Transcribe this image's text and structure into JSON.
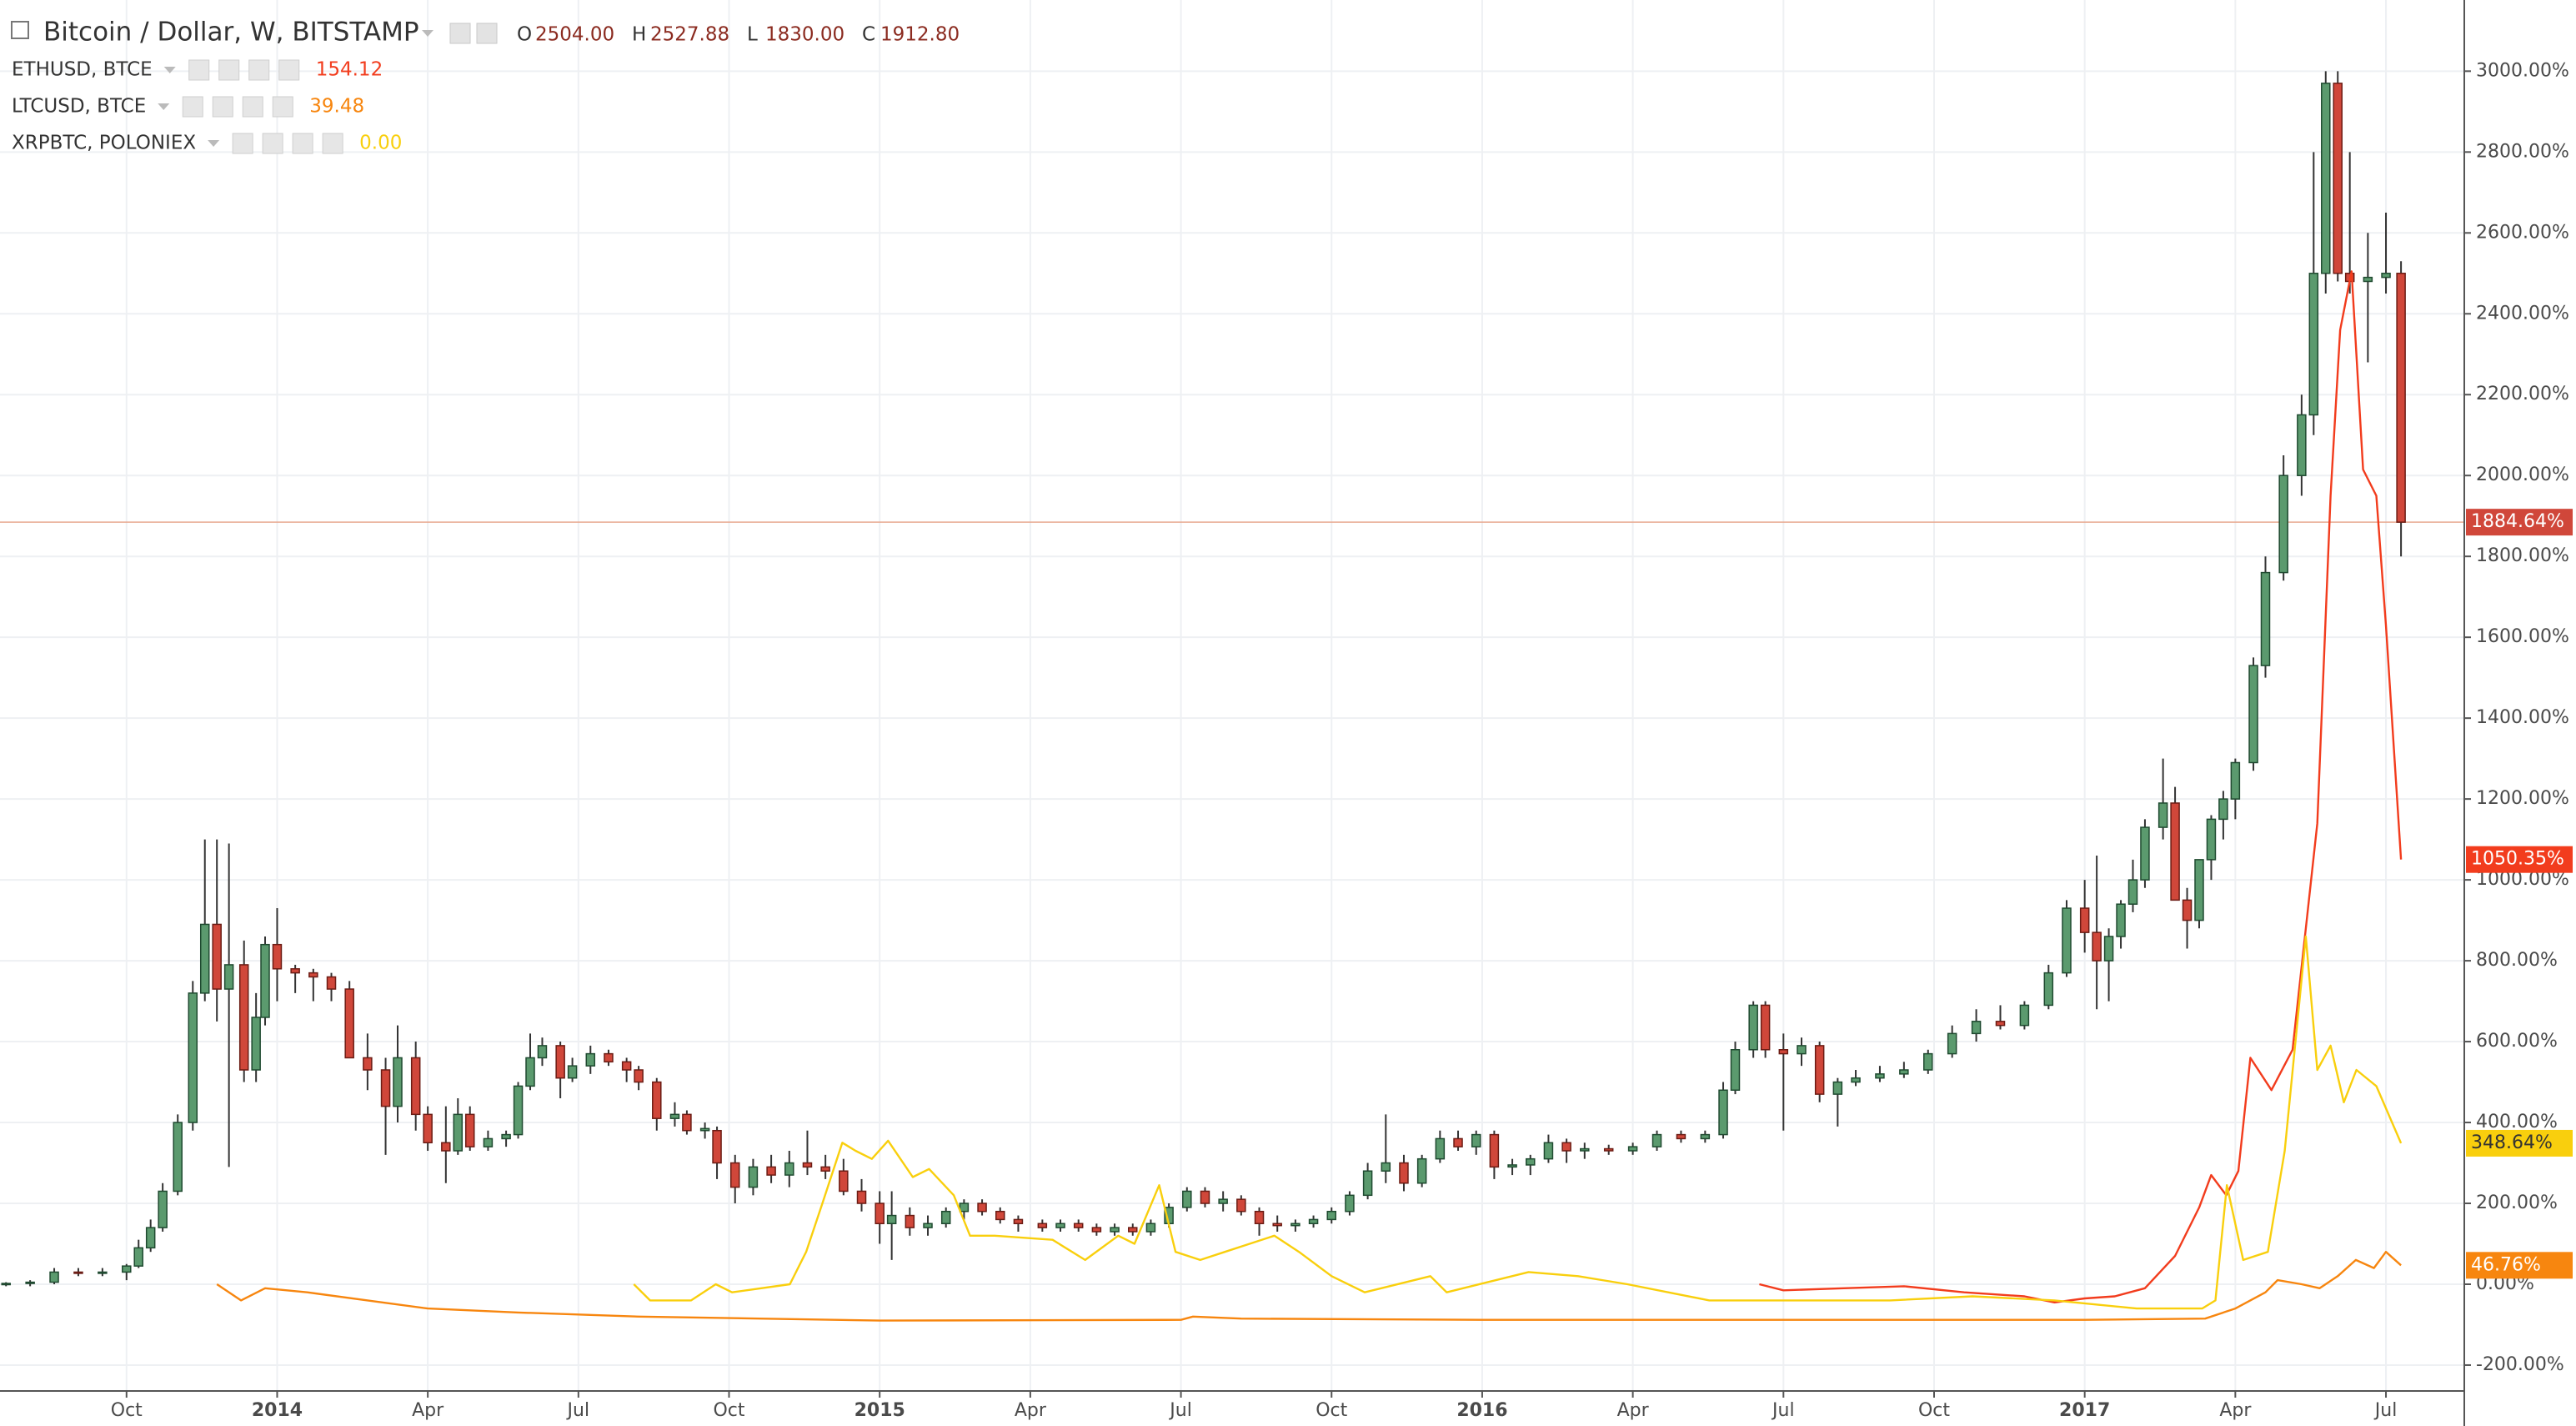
{
  "chart_data": {
    "type": "candlestick",
    "title": "Bitcoin / Dollar, W, BITSTAMP",
    "ohlc": [
      {
        "label": "O",
        "value": "2504.00"
      },
      {
        "label": "H",
        "value": "2527.88"
      },
      {
        "label": "L",
        "value": "1830.00"
      },
      {
        "label": "C",
        "value": "1912.80"
      }
    ],
    "xlim": [
      2013.54,
      2017.63
    ],
    "xticks": [
      {
        "value": 2013.75,
        "label": "Oct"
      },
      2014,
      {
        "value": 2014.25,
        "label": "Apr"
      },
      {
        "value": 2014.5,
        "label": "Jul"
      },
      {
        "value": 2014.75,
        "label": "Oct"
      },
      2015,
      {
        "value": 2015.25,
        "label": "Apr"
      },
      {
        "value": 2015.5,
        "label": "Jul"
      },
      {
        "value": 2015.75,
        "label": "Oct"
      },
      2016,
      {
        "value": 2016.25,
        "label": "Apr"
      },
      {
        "value": 2016.5,
        "label": "Jul"
      },
      {
        "value": 2016.75,
        "label": "Oct"
      },
      2017,
      {
        "value": 2017.25,
        "label": "Apr"
      },
      {
        "value": 2017.5,
        "label": "Jul"
      }
    ],
    "ylim": [
      -264,
      3176
    ],
    "yticks": [
      {
        "value": -200,
        "label": "-200.00%"
      },
      {
        "value": 0,
        "label": "0.00%"
      },
      {
        "value": 200,
        "label": "200.00%"
      },
      {
        "value": 400,
        "label": "400.00%"
      },
      {
        "value": 600,
        "label": "600.00%"
      },
      {
        "value": 800,
        "label": "800.00%"
      },
      {
        "value": 1000,
        "label": "1000.00%"
      },
      {
        "value": 1200,
        "label": "1200.00%"
      },
      {
        "value": 1400,
        "label": "1400.00%"
      },
      {
        "value": 1600,
        "label": "1600.00%"
      },
      {
        "value": 1800,
        "label": "1800.00%"
      },
      {
        "value": 2000,
        "label": "2000.00%"
      },
      {
        "value": 2200,
        "label": "2200.00%"
      },
      {
        "value": 2400,
        "label": "2400.00%"
      },
      {
        "value": 2600,
        "label": "2600.00%"
      },
      {
        "value": 2800,
        "label": "2800.00%"
      },
      {
        "value": 3000,
        "label": "3000.00%"
      }
    ],
    "grid": true,
    "up_color": "#5b9a6e",
    "down_color": "#d0473a",
    "candles": {
      "last_label": "1884.64%",
      "x": [
        2013.55,
        2013.59,
        2013.63,
        2013.67,
        2013.71,
        2013.75,
        2013.77,
        2013.79,
        2013.81,
        2013.835,
        2013.86,
        2013.88,
        2013.9,
        2013.92,
        2013.945,
        2013.965,
        2013.98,
        2014.0,
        2014.03,
        2014.06,
        2014.09,
        2014.12,
        2014.15,
        2014.18,
        2014.2,
        2014.23,
        2014.25,
        2014.28,
        2014.3,
        2014.32,
        2014.35,
        2014.38,
        2014.4,
        2014.42,
        2014.44,
        2014.47,
        2014.49,
        2014.52,
        2014.55,
        2014.58,
        2014.6,
        2014.63,
        2014.66,
        2014.68,
        2014.71,
        2014.73,
        2014.76,
        2014.79,
        2014.82,
        2014.85,
        2014.88,
        2014.91,
        2014.94,
        2014.97,
        2015.0,
        2015.02,
        2015.05,
        2015.08,
        2015.11,
        2015.14,
        2015.17,
        2015.2,
        2015.23,
        2015.27,
        2015.3,
        2015.33,
        2015.36,
        2015.39,
        2015.42,
        2015.45,
        2015.48,
        2015.51,
        2015.54,
        2015.57,
        2015.6,
        2015.63,
        2015.66,
        2015.69,
        2015.72,
        2015.75,
        2015.78,
        2015.81,
        2015.84,
        2015.87,
        2015.9,
        2015.93,
        2015.96,
        2015.99,
        2016.02,
        2016.05,
        2016.08,
        2016.11,
        2016.14,
        2016.17,
        2016.21,
        2016.25,
        2016.29,
        2016.33,
        2016.37,
        2016.4,
        2016.42,
        2016.45,
        2016.47,
        2016.5,
        2016.53,
        2016.56,
        2016.59,
        2016.62,
        2016.66,
        2016.7,
        2016.74,
        2016.78,
        2016.82,
        2016.86,
        2016.9,
        2016.94,
        2016.97,
        2017.0,
        2017.02,
        2017.04,
        2017.06,
        2017.08,
        2017.1,
        2017.13,
        2017.15,
        2017.17,
        2017.19,
        2017.21,
        2017.23,
        2017.25,
        2017.28,
        2017.3,
        2017.33,
        2017.36,
        2017.38,
        2017.4,
        2017.42,
        2017.44,
        2017.47,
        2017.5,
        2017.525
      ],
      "open": [
        0,
        2,
        5,
        30,
        28,
        30,
        45,
        90,
        140,
        230,
        400,
        720,
        890,
        730,
        790,
        530,
        660,
        840,
        780,
        770,
        760,
        730,
        560,
        530,
        440,
        560,
        420,
        350,
        330,
        420,
        340,
        360,
        370,
        490,
        560,
        590,
        510,
        540,
        570,
        550,
        530,
        500,
        410,
        420,
        380,
        380,
        300,
        240,
        290,
        270,
        300,
        290,
        280,
        230,
        200,
        150,
        170,
        140,
        150,
        180,
        200,
        180,
        160,
        150,
        140,
        150,
        140,
        130,
        140,
        130,
        150,
        190,
        230,
        200,
        210,
        180,
        150,
        145,
        150,
        160,
        180,
        220,
        280,
        300,
        250,
        310,
        360,
        340,
        370,
        290,
        295,
        310,
        350,
        330,
        335,
        330,
        340,
        370,
        360,
        370,
        480,
        580,
        690,
        580,
        570,
        590,
        470,
        500,
        510,
        520,
        530,
        570,
        620,
        650,
        640,
        690,
        770,
        930,
        870,
        800,
        860,
        940,
        1000,
        1130,
        1190,
        950,
        900,
        1050,
        1150,
        1200,
        1290,
        1530,
        1760,
        2000,
        2150,
        2500,
        2970,
        2500,
        2480,
        2490,
        2500
      ],
      "high": [
        5,
        10,
        40,
        40,
        40,
        50,
        110,
        160,
        250,
        420,
        750,
        1100,
        1100,
        1090,
        850,
        720,
        860,
        930,
        790,
        780,
        770,
        750,
        620,
        560,
        640,
        600,
        440,
        440,
        460,
        440,
        380,
        380,
        500,
        620,
        610,
        600,
        560,
        590,
        580,
        560,
        540,
        510,
        450,
        430,
        400,
        390,
        320,
        310,
        320,
        330,
        380,
        320,
        310,
        260,
        230,
        230,
        190,
        170,
        190,
        210,
        210,
        190,
        170,
        160,
        160,
        160,
        150,
        150,
        150,
        160,
        200,
        240,
        240,
        230,
        220,
        190,
        170,
        160,
        170,
        190,
        230,
        300,
        420,
        320,
        320,
        380,
        380,
        380,
        380,
        310,
        320,
        370,
        360,
        350,
        345,
        350,
        380,
        380,
        380,
        500,
        600,
        700,
        700,
        620,
        610,
        600,
        510,
        530,
        540,
        550,
        580,
        640,
        680,
        690,
        700,
        790,
        950,
        1000,
        1060,
        880,
        950,
        1050,
        1150,
        1300,
        1230,
        980,
        1050,
        1160,
        1220,
        1300,
        1550,
        1800,
        2050,
        2200,
        2800,
        3000,
        3000,
        2800,
        2600,
        2650,
        2530
      ],
      "low": [
        -5,
        -5,
        0,
        20,
        20,
        10,
        40,
        80,
        130,
        220,
        380,
        700,
        650,
        290,
        500,
        500,
        640,
        700,
        720,
        700,
        700,
        560,
        480,
        320,
        400,
        380,
        330,
        250,
        320,
        330,
        330,
        340,
        360,
        480,
        540,
        460,
        500,
        520,
        540,
        500,
        480,
        380,
        390,
        370,
        360,
        260,
        200,
        220,
        250,
        240,
        270,
        260,
        220,
        180,
        100,
        60,
        120,
        120,
        140,
        160,
        170,
        150,
        130,
        130,
        130,
        130,
        120,
        120,
        120,
        120,
        140,
        180,
        190,
        180,
        170,
        120,
        130,
        130,
        140,
        150,
        170,
        210,
        250,
        230,
        240,
        300,
        330,
        320,
        260,
        270,
        270,
        300,
        300,
        310,
        320,
        320,
        330,
        350,
        350,
        360,
        470,
        560,
        560,
        380,
        540,
        450,
        390,
        490,
        500,
        510,
        520,
        560,
        600,
        630,
        630,
        680,
        760,
        820,
        680,
        700,
        830,
        920,
        980,
        1100,
        950,
        830,
        880,
        1000,
        1100,
        1150,
        1270,
        1500,
        1740,
        1950,
        2100,
        2450,
        2480,
        2450,
        2280,
        2450,
        1800
      ],
      "close": [
        2,
        5,
        30,
        28,
        30,
        45,
        90,
        140,
        230,
        400,
        720,
        890,
        730,
        790,
        530,
        660,
        840,
        780,
        770,
        760,
        730,
        560,
        530,
        440,
        560,
        420,
        350,
        330,
        420,
        340,
        360,
        370,
        490,
        560,
        590,
        510,
        540,
        570,
        550,
        530,
        500,
        410,
        420,
        380,
        385,
        300,
        240,
        290,
        270,
        300,
        290,
        280,
        230,
        200,
        150,
        170,
        140,
        150,
        180,
        200,
        180,
        160,
        150,
        140,
        150,
        140,
        130,
        140,
        130,
        150,
        190,
        230,
        200,
        210,
        180,
        150,
        145,
        150,
        160,
        180,
        220,
        280,
        300,
        250,
        310,
        360,
        340,
        370,
        290,
        295,
        310,
        350,
        330,
        335,
        330,
        340,
        370,
        360,
        370,
        480,
        580,
        690,
        580,
        570,
        590,
        470,
        500,
        510,
        520,
        530,
        570,
        620,
        650,
        640,
        690,
        770,
        930,
        870,
        800,
        860,
        940,
        1000,
        1130,
        1190,
        950,
        900,
        1050,
        1150,
        1200,
        1290,
        1530,
        1760,
        2000,
        2150,
        2500,
        2970,
        2500,
        2480,
        2490,
        2500,
        1884.64
      ]
    },
    "series": [
      {
        "name": "ETHUSD, BTCE",
        "legend_value": 154.12,
        "color": "#f23c1d",
        "last_label": "1050.35%",
        "label_text_color": "#ffffff",
        "x": [
          2016.46,
          2016.5,
          2016.6,
          2016.7,
          2016.8,
          2016.9,
          2016.95,
          2017.0,
          2017.05,
          2017.1,
          2017.15,
          2017.19,
          2017.21,
          2017.235,
          2017.255,
          2017.275,
          2017.31,
          2017.345,
          2017.386,
          2017.408,
          2017.424,
          2017.443,
          2017.462,
          2017.484,
          2017.5,
          2017.525
        ],
        "values": [
          0,
          -15,
          -10,
          -5,
          -20,
          -30,
          -45,
          -35,
          -30,
          -10,
          70,
          190,
          270,
          220,
          280,
          560,
          480,
          580,
          1140,
          1950,
          2360,
          2505,
          2015,
          1950,
          1630,
          1050.35
        ]
      },
      {
        "name": "LTCUSD, BTCE",
        "legend_value": 39.48,
        "color": "#f7860f",
        "last_label": "46.76%",
        "label_text_color": "#ffffff",
        "x": [
          2013.9,
          2013.94,
          2013.98,
          2014.05,
          2014.15,
          2014.25,
          2014.4,
          2014.6,
          2014.8,
          2015.0,
          2015.5,
          2015.52,
          2015.6,
          2016.0,
          2016.5,
          2017.0,
          2017.2,
          2017.25,
          2017.3,
          2017.32,
          2017.36,
          2017.39,
          2017.42,
          2017.45,
          2017.48,
          2017.5,
          2017.525
        ],
        "values": [
          0,
          -40,
          -10,
          -20,
          -40,
          -60,
          -70,
          -80,
          -85,
          -90,
          -88,
          -80,
          -85,
          -88,
          -88,
          -88,
          -85,
          -60,
          -20,
          10,
          0,
          -10,
          20,
          60,
          40,
          80,
          46.76
        ]
      },
      {
        "name": "XRPBTC, POLONIEX",
        "legend_value": "0.00",
        "color": "#f9cf0d",
        "last_label": "348.64%",
        "label_text_color": "#333333",
        "x": [
          2014.592,
          2014.619,
          2014.687,
          2014.728,
          2014.755,
          2014.851,
          2014.878,
          2014.905,
          2014.938,
          2014.96,
          2014.987,
          2015.014,
          2015.055,
          2015.082,
          2015.123,
          2015.15,
          2015.191,
          2015.287,
          2015.341,
          2015.396,
          2015.423,
          2015.464,
          2015.491,
          2015.532,
          2015.573,
          2015.614,
          2015.655,
          2015.696,
          2015.75,
          2015.805,
          2015.914,
          2015.941,
          2016.077,
          2016.159,
          2016.241,
          2016.377,
          2016.541,
          2016.677,
          2016.814,
          2016.95,
          2017.086,
          2017.195,
          2017.217,
          2017.236,
          2017.263,
          2017.304,
          2017.332,
          2017.367,
          2017.386,
          2017.408,
          2017.43,
          2017.451,
          2017.484,
          2017.525
        ],
        "values": [
          0,
          -40,
          -40,
          0,
          -20,
          0,
          80,
          200,
          350,
          330,
          310,
          355,
          265,
          285,
          220,
          120,
          120,
          110,
          60,
          120,
          100,
          245,
          80,
          60,
          80,
          100,
          120,
          80,
          20,
          -20,
          20,
          -20,
          30,
          20,
          0,
          -40,
          -40,
          -40,
          -30,
          -40,
          -60,
          -60,
          -40,
          245,
          60,
          80,
          330,
          860,
          530,
          590,
          450,
          530,
          490,
          348.64
        ]
      }
    ]
  }
}
